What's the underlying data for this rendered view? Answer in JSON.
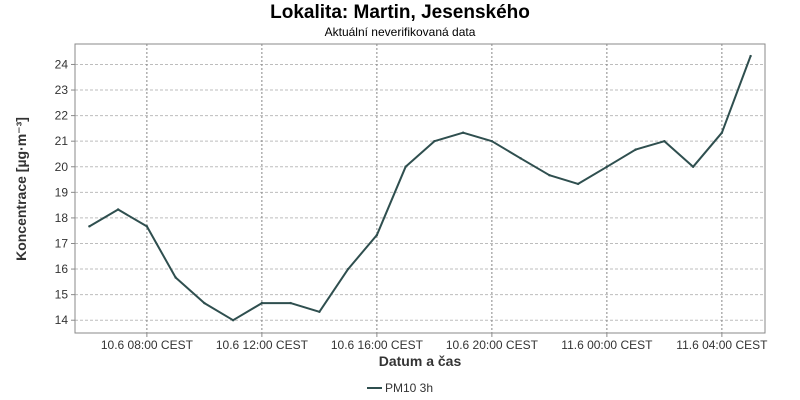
{
  "chart_data": {
    "type": "line",
    "title": "Lokalita: Martin, Jesenského",
    "subtitle": "Aktuální neverifikovaná data",
    "xlabel": "Datum a čas",
    "ylabel": "Koncentrace [µg·m⁻³]",
    "ylim": [
      13.5,
      24.8
    ],
    "y_ticks": [
      14,
      15,
      16,
      17,
      18,
      19,
      20,
      21,
      22,
      23,
      24
    ],
    "x_ticks": [
      {
        "x": "2024-06-10 08:00",
        "label": "10.6 08:00 CEST"
      },
      {
        "x": "2024-06-10 12:00",
        "label": "10.6 12:00 CEST"
      },
      {
        "x": "2024-06-10 16:00",
        "label": "10.6 16:00 CEST"
      },
      {
        "x": "2024-06-10 20:00",
        "label": "10.6 20:00 CEST"
      },
      {
        "x": "2024-06-11 00:00",
        "label": "11.6 00:00 CEST"
      },
      {
        "x": "2024-06-11 04:00",
        "label": "11.6 04:00 CEST"
      }
    ],
    "xlim": [
      "2024-06-10 05:30",
      "2024-06-11 05:30"
    ],
    "grid": true,
    "legend_position": "bottom",
    "series": [
      {
        "name": "PM10 3h",
        "color": "#2f4f4f",
        "x": [
          "2024-06-10 06:00",
          "2024-06-10 07:00",
          "2024-06-10 08:00",
          "2024-06-10 09:00",
          "2024-06-10 10:00",
          "2024-06-10 11:00",
          "2024-06-10 12:00",
          "2024-06-10 13:00",
          "2024-06-10 14:00",
          "2024-06-10 15:00",
          "2024-06-10 16:00",
          "2024-06-10 17:00",
          "2024-06-10 18:00",
          "2024-06-10 19:00",
          "2024-06-10 20:00",
          "2024-06-10 21:00",
          "2024-06-10 22:00",
          "2024-06-10 23:00",
          "2024-06-11 00:00",
          "2024-06-11 01:00",
          "2024-06-11 02:00",
          "2024-06-11 03:00",
          "2024-06-11 04:00",
          "2024-06-11 05:00"
        ],
        "values": [
          17.67,
          18.33,
          17.67,
          15.67,
          14.67,
          14.0,
          14.67,
          14.67,
          14.33,
          16.0,
          17.33,
          20.0,
          21.0,
          21.33,
          21.0,
          20.33,
          19.67,
          19.33,
          20.0,
          20.67,
          21.0,
          20.0,
          21.33,
          24.33
        ]
      }
    ]
  }
}
